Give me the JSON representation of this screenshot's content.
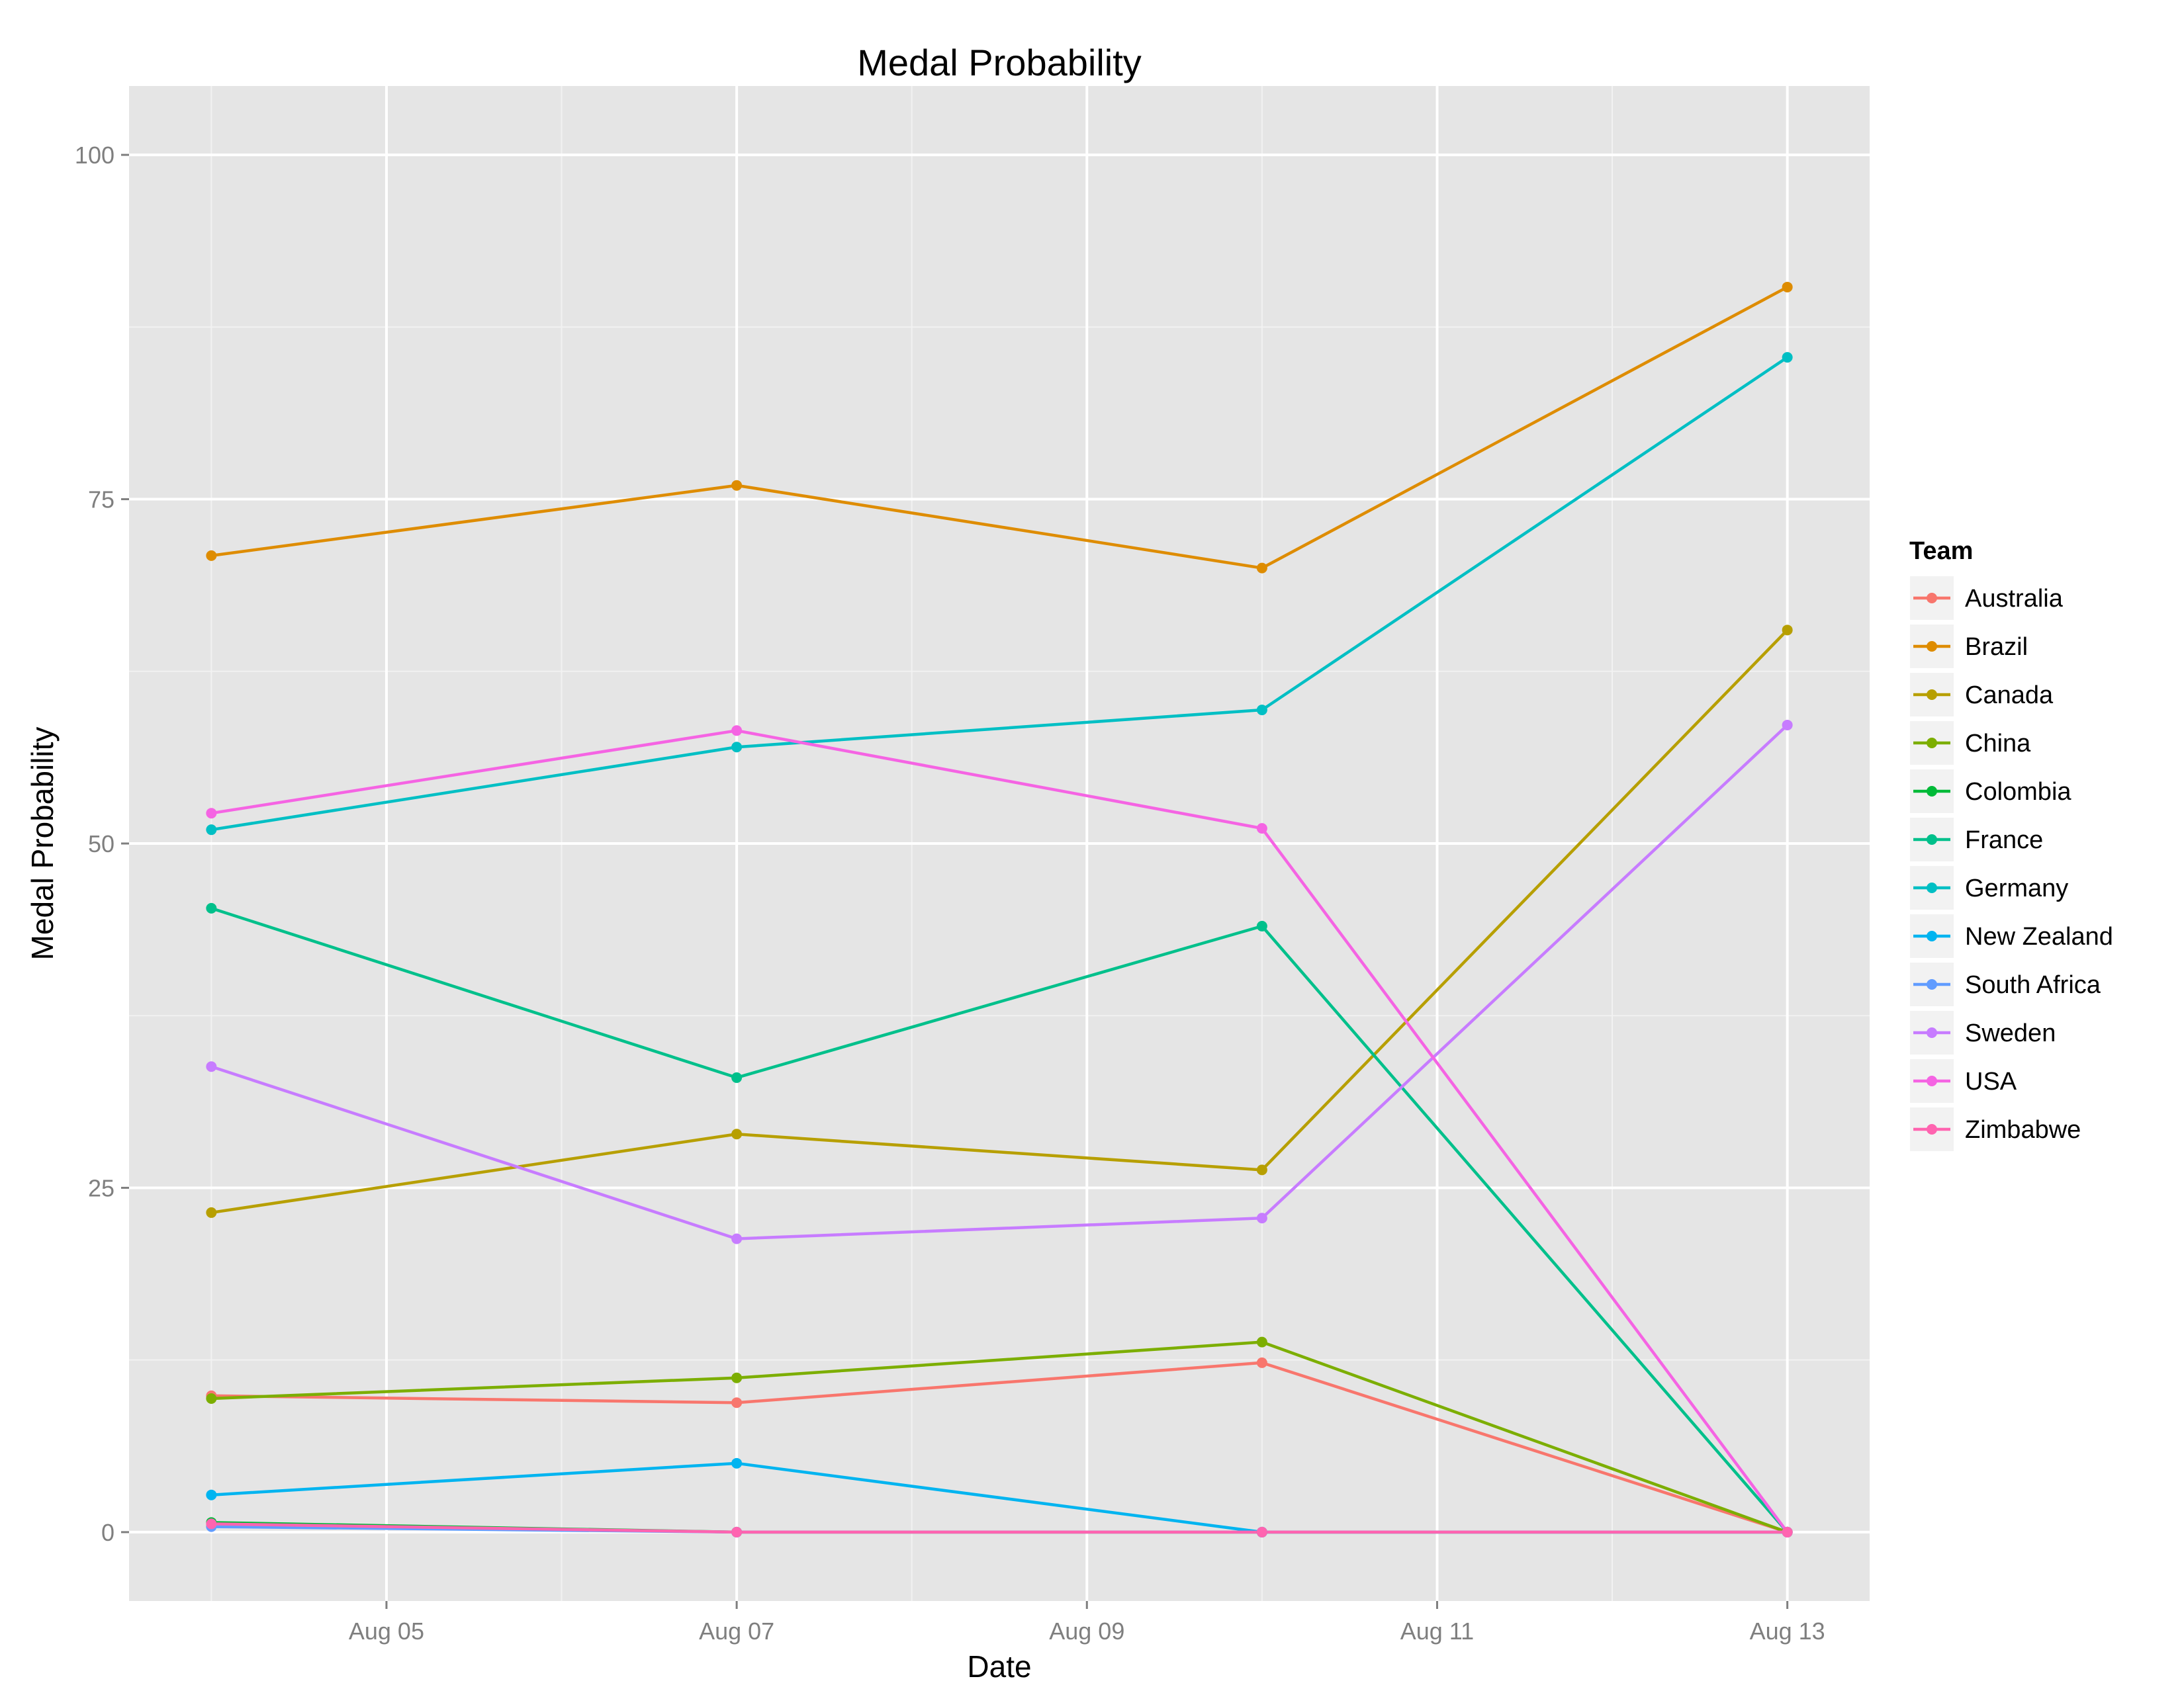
{
  "chart_data": {
    "type": "line",
    "title": "Medal Probability",
    "xlabel": "Date",
    "ylabel": "Medal Probability",
    "x": [
      "Aug 04",
      "Aug 07",
      "Aug 10",
      "Aug 13"
    ],
    "x_day": [
      4,
      7,
      10,
      13
    ],
    "xlim": [
      3.53,
      13.47
    ],
    "ylim": [
      -5,
      105
    ],
    "x_ticks": [
      {
        "day": 5,
        "label": "Aug 05"
      },
      {
        "day": 7,
        "label": "Aug 07"
      },
      {
        "day": 9,
        "label": "Aug 09"
      },
      {
        "day": 11,
        "label": "Aug 11"
      },
      {
        "day": 13,
        "label": "Aug 13"
      }
    ],
    "y_ticks": [
      {
        "value": 0,
        "label": "0"
      },
      {
        "value": 25,
        "label": "25"
      },
      {
        "value": 50,
        "label": "50"
      },
      {
        "value": 75,
        "label": "75"
      },
      {
        "value": 100,
        "label": "100"
      }
    ],
    "grid": true,
    "legend": {
      "title": "Team",
      "position": "right"
    },
    "series": [
      {
        "name": "Australia",
        "color": "#F8766D",
        "values": [
          9.9,
          9.4,
          12.3,
          0
        ]
      },
      {
        "name": "Brazil",
        "color": "#DE8C00",
        "values": [
          70.9,
          76.0,
          70.0,
          90.4
        ]
      },
      {
        "name": "Canada",
        "color": "#B79F00",
        "values": [
          23.2,
          28.9,
          26.3,
          65.5
        ]
      },
      {
        "name": "China",
        "color": "#7CAE00",
        "values": [
          9.7,
          11.2,
          13.8,
          0
        ]
      },
      {
        "name": "Colombia",
        "color": "#00BA38",
        "values": [
          0.7,
          0,
          0,
          0
        ]
      },
      {
        "name": "France",
        "color": "#00C08B",
        "values": [
          45.3,
          33.0,
          44.0,
          0
        ]
      },
      {
        "name": "Germany",
        "color": "#00BFC4",
        "values": [
          51.0,
          57.0,
          59.7,
          85.3
        ]
      },
      {
        "name": "New Zealand",
        "color": "#00B4F0",
        "values": [
          2.7,
          5.0,
          0,
          0
        ]
      },
      {
        "name": "South Africa",
        "color": "#619CFF",
        "values": [
          0.4,
          0,
          0,
          0
        ]
      },
      {
        "name": "Sweden",
        "color": "#C77CFF",
        "values": [
          33.8,
          21.3,
          22.8,
          58.6
        ]
      },
      {
        "name": "USA",
        "color": "#F564E3",
        "values": [
          52.2,
          58.2,
          51.1,
          0
        ]
      },
      {
        "name": "Zimbabwe",
        "color": "#FF64B0",
        "values": [
          0.6,
          0,
          0,
          0
        ]
      }
    ]
  }
}
